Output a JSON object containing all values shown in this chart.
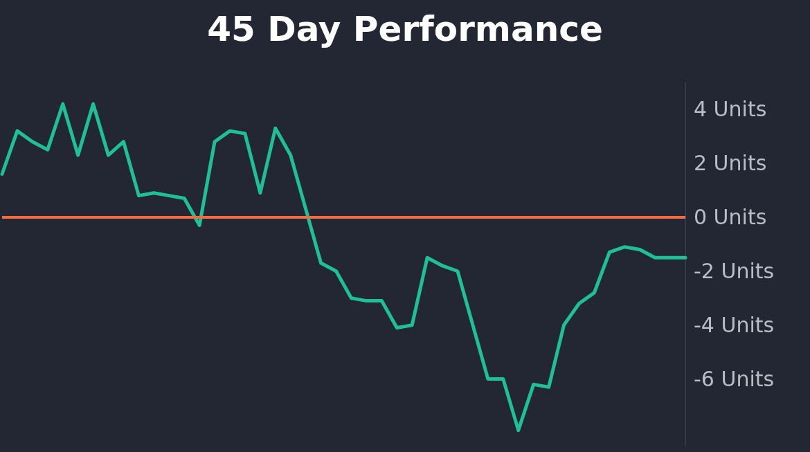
{
  "chart_data": {
    "type": "line",
    "title": "45 Day Performance",
    "categories": [
      null,
      null,
      null,
      null,
      null,
      null,
      null,
      null,
      null,
      null,
      null,
      null,
      null,
      null,
      null,
      null,
      null,
      null,
      null,
      null,
      null,
      null,
      null,
      null,
      null,
      null,
      null,
      null,
      null,
      null,
      null,
      null,
      null,
      null,
      null,
      null,
      null,
      null,
      null,
      null,
      null,
      null,
      null,
      null,
      null,
      null
    ],
    "series": [
      {
        "color": "#1fbf98",
        "values": [
          1.6,
          3.2,
          2.8,
          2.5,
          4.2,
          2.3,
          4.2,
          2.3,
          2.8,
          0.8,
          0.9,
          0.8,
          0.7,
          -0.3,
          2.8,
          3.2,
          3.1,
          0.9,
          3.3,
          2.3,
          0.3,
          -1.7,
          -2.0,
          -3.0,
          -3.1,
          -3.1,
          -4.1,
          -4.0,
          -1.5,
          -1.8,
          -2.0,
          -4.0,
          -6.0,
          -6.0,
          -7.9,
          -6.2,
          -6.3,
          -4.0,
          -3.2,
          -2.8,
          -1.3,
          -1.1,
          -1.2,
          -1.5,
          -1.5,
          -1.5
        ]
      }
    ],
    "ylim": [
      -8.5,
      5
    ],
    "yticks": [
      {
        "value": 4,
        "label": "4 Units"
      },
      {
        "value": 2,
        "label": "2 Units"
      },
      {
        "value": 0,
        "label": "0 Units"
      },
      {
        "value": -2,
        "label": "-2 Units"
      },
      {
        "value": -4,
        "label": "-4 Units"
      },
      {
        "value": -6,
        "label": "-6 Units"
      }
    ],
    "ref_lines": [
      {
        "axis": "y",
        "value": 0,
        "color": "#f26b3a",
        "line_style": "solid"
      }
    ],
    "grid": false,
    "marker": "none",
    "line_style": "solid"
  }
}
